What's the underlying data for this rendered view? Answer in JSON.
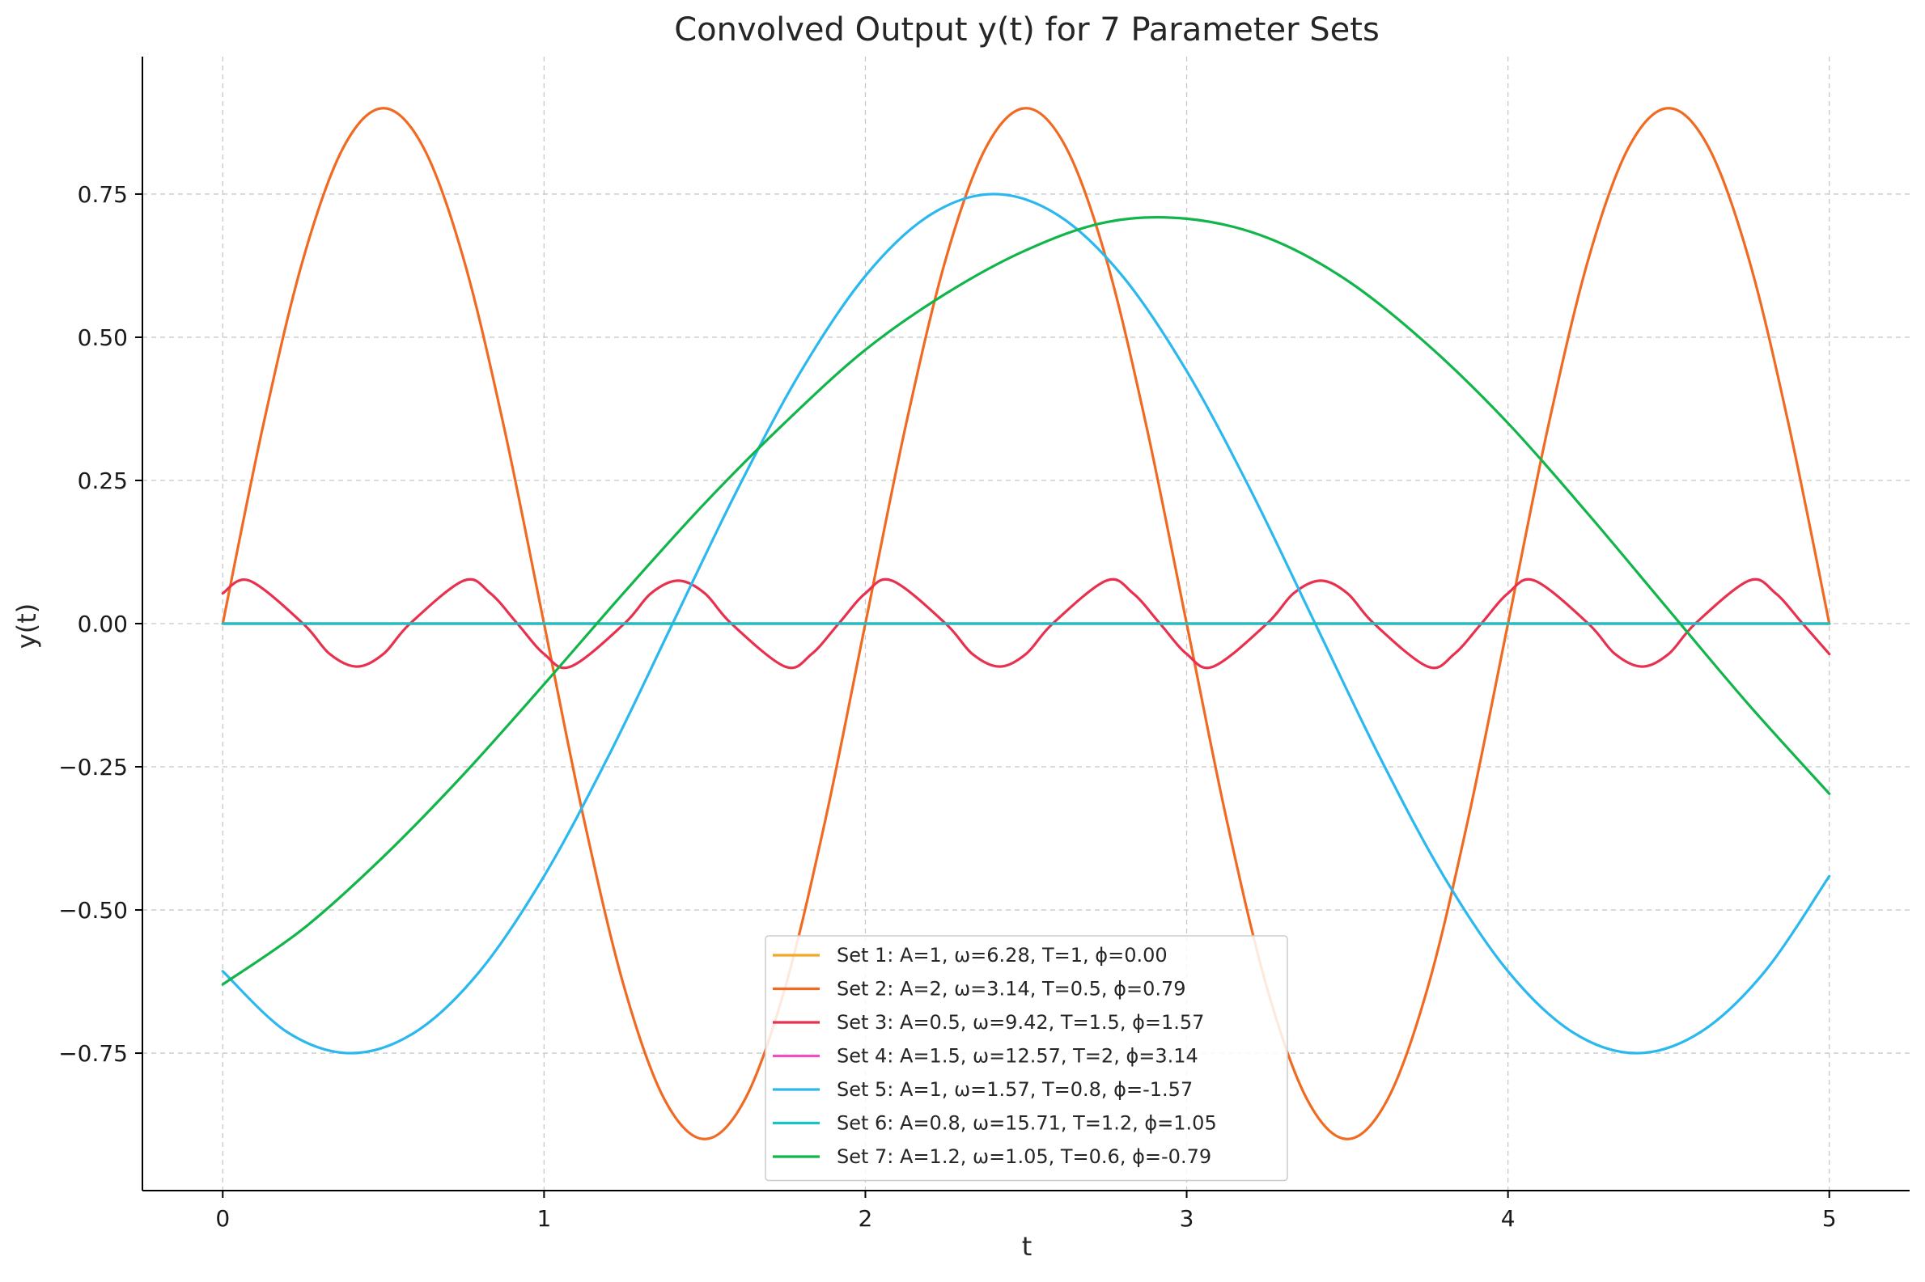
{
  "chart_data": {
    "type": "line",
    "title": "Convolved Output y(t) for 7 Parameter Sets",
    "xlabel": "t",
    "ylabel": "y(t)",
    "xlim": [
      -0.25,
      5.25
    ],
    "ylim": [
      -0.99,
      0.99
    ],
    "xticks": [
      0,
      1,
      2,
      3,
      4,
      5
    ],
    "xtick_labels": [
      "0",
      "1",
      "2",
      "3",
      "4",
      "5"
    ],
    "yticks": [
      0.75,
      0.5,
      0.25,
      0.0,
      -0.25,
      -0.5,
      -0.75
    ],
    "ytick_labels": [
      "0.75",
      "0.50",
      "0.25",
      "0.00",
      "−0.25",
      "−0.50",
      "−0.75"
    ],
    "grid": true,
    "legend_position": "lower center",
    "series": [
      {
        "name": "Set 1: A=1, ω=6.28, T=1, ϕ=0.00",
        "color": "#f5a623",
        "x": [
          0,
          0.5,
          1,
          1.5,
          2,
          2.5,
          3,
          3.5,
          4,
          4.5,
          5
        ],
        "y": [
          0,
          0,
          0,
          0,
          0,
          0,
          0,
          0,
          0,
          0,
          0
        ]
      },
      {
        "name": "Set 2: A=2, ω=3.14, T=0.5, ϕ=0.79",
        "color": "#f06a22",
        "x": [
          0,
          0.125,
          0.25,
          0.375,
          0.5,
          0.625,
          0.75,
          0.875,
          1,
          1.125,
          1.25,
          1.375,
          1.5,
          1.625,
          1.75,
          1.875,
          2,
          2.125,
          2.25,
          2.375,
          2.5,
          2.625,
          2.75,
          2.875,
          3,
          3.125,
          3.25,
          3.375,
          3.5,
          3.625,
          3.75,
          3.875,
          4,
          4.125,
          4.25,
          4.375,
          4.5,
          4.625,
          4.75,
          4.875,
          5
        ],
        "y": [
          0,
          0.344,
          0.636,
          0.831,
          0.9,
          0.831,
          0.636,
          0.344,
          0,
          -0.344,
          -0.636,
          -0.831,
          -0.9,
          -0.831,
          -0.636,
          -0.344,
          0,
          0.344,
          0.636,
          0.831,
          0.9,
          0.831,
          0.636,
          0.344,
          0,
          -0.344,
          -0.636,
          -0.831,
          -0.9,
          -0.831,
          -0.636,
          -0.344,
          0,
          0.344,
          0.636,
          0.831,
          0.9,
          0.831,
          0.636,
          0.344,
          0
        ]
      },
      {
        "name": "Set 3: A=0.5, ω=9.42, T=1.5, ϕ=1.57",
        "color": "#e8314f",
        "x": [
          0,
          0.083,
          0.25,
          0.333,
          0.417,
          0.5,
          0.583,
          0.75,
          0.833,
          0.917,
          1.0,
          1.083,
          1.25,
          1.333,
          1.417,
          1.5,
          1.583,
          1.75,
          1.833,
          1.917,
          2.0,
          2.083,
          2.25,
          2.333,
          2.417,
          2.5,
          2.583,
          2.75,
          2.833,
          2.917,
          3.0,
          3.083,
          3.25,
          3.333,
          3.417,
          3.5,
          3.583,
          3.75,
          3.833,
          3.917,
          4.0,
          4.083,
          4.25,
          4.333,
          4.417,
          4.5,
          4.583,
          4.75,
          4.833,
          4.917,
          5.0
        ],
        "y": [
          0.053,
          0.075,
          0,
          -0.053,
          -0.075,
          -0.053,
          0,
          0.075,
          0.053,
          0,
          -0.053,
          -0.075,
          0,
          0.053,
          0.075,
          0.053,
          0,
          -0.075,
          -0.053,
          0,
          0.053,
          0.075,
          0,
          -0.053,
          -0.075,
          -0.053,
          0,
          0.075,
          0.053,
          0,
          -0.053,
          -0.075,
          0,
          0.053,
          0.075,
          0.053,
          0,
          -0.075,
          -0.053,
          0,
          0.053,
          0.075,
          0,
          -0.053,
          -0.075,
          -0.053,
          0,
          0.075,
          0.053,
          0,
          -0.053
        ]
      },
      {
        "name": "Set 4: A=1.5, ω=12.57, T=2, ϕ=3.14",
        "color": "#f04fc0",
        "x": [
          0,
          0.5,
          1,
          1.5,
          2,
          2.5,
          3,
          3.5,
          4,
          4.5,
          5
        ],
        "y": [
          0,
          0,
          0,
          0,
          0,
          0,
          0,
          0,
          0,
          0,
          0
        ]
      },
      {
        "name": "Set 5: A=1, ω=1.57, T=0.8, ϕ=-1.57",
        "color": "#2bb8ef",
        "x": [
          0,
          0.2,
          0.4,
          0.6,
          0.8,
          1.0,
          1.2,
          1.4,
          1.6,
          1.8,
          2.0,
          2.2,
          2.4,
          2.6,
          2.8,
          3.0,
          3.2,
          3.4,
          3.6,
          3.8,
          4.0,
          4.2,
          4.4,
          4.6,
          4.8,
          5.0
        ],
        "y": [
          -0.607,
          -0.713,
          -0.75,
          -0.713,
          -0.607,
          -0.441,
          -0.232,
          0,
          0.232,
          0.441,
          0.607,
          0.713,
          0.75,
          0.713,
          0.607,
          0.441,
          0.232,
          0,
          -0.232,
          -0.441,
          -0.607,
          -0.713,
          -0.75,
          -0.713,
          -0.607,
          -0.441
        ]
      },
      {
        "name": "Set 6: A=0.8, ω=15.71, T=1.2, ϕ=1.05",
        "color": "#17c3c3",
        "x": [
          0,
          0.5,
          1,
          1.5,
          2,
          2.5,
          3,
          3.5,
          4,
          4.5,
          5
        ],
        "y": [
          0,
          0,
          0,
          0,
          0,
          0,
          0,
          0,
          0,
          0,
          0
        ]
      },
      {
        "name": "Set 7: A=1.2, ω=1.05, T=0.6, ϕ=-0.79",
        "color": "#12b54a",
        "x": [
          0,
          0.25,
          0.5,
          0.75,
          1.0,
          1.25,
          1.5,
          1.75,
          2.0,
          2.25,
          2.5,
          2.75,
          3.0,
          3.25,
          3.5,
          3.75,
          4.0,
          4.25,
          4.5,
          4.75,
          5.0
        ],
        "y": [
          -0.63,
          -0.533,
          -0.407,
          -0.263,
          -0.106,
          0.055,
          0.21,
          0.351,
          0.478,
          0.576,
          0.652,
          0.701,
          0.707,
          0.674,
          0.599,
          0.487,
          0.35,
          0.191,
          0.024,
          -0.142,
          -0.297
        ]
      }
    ]
  }
}
